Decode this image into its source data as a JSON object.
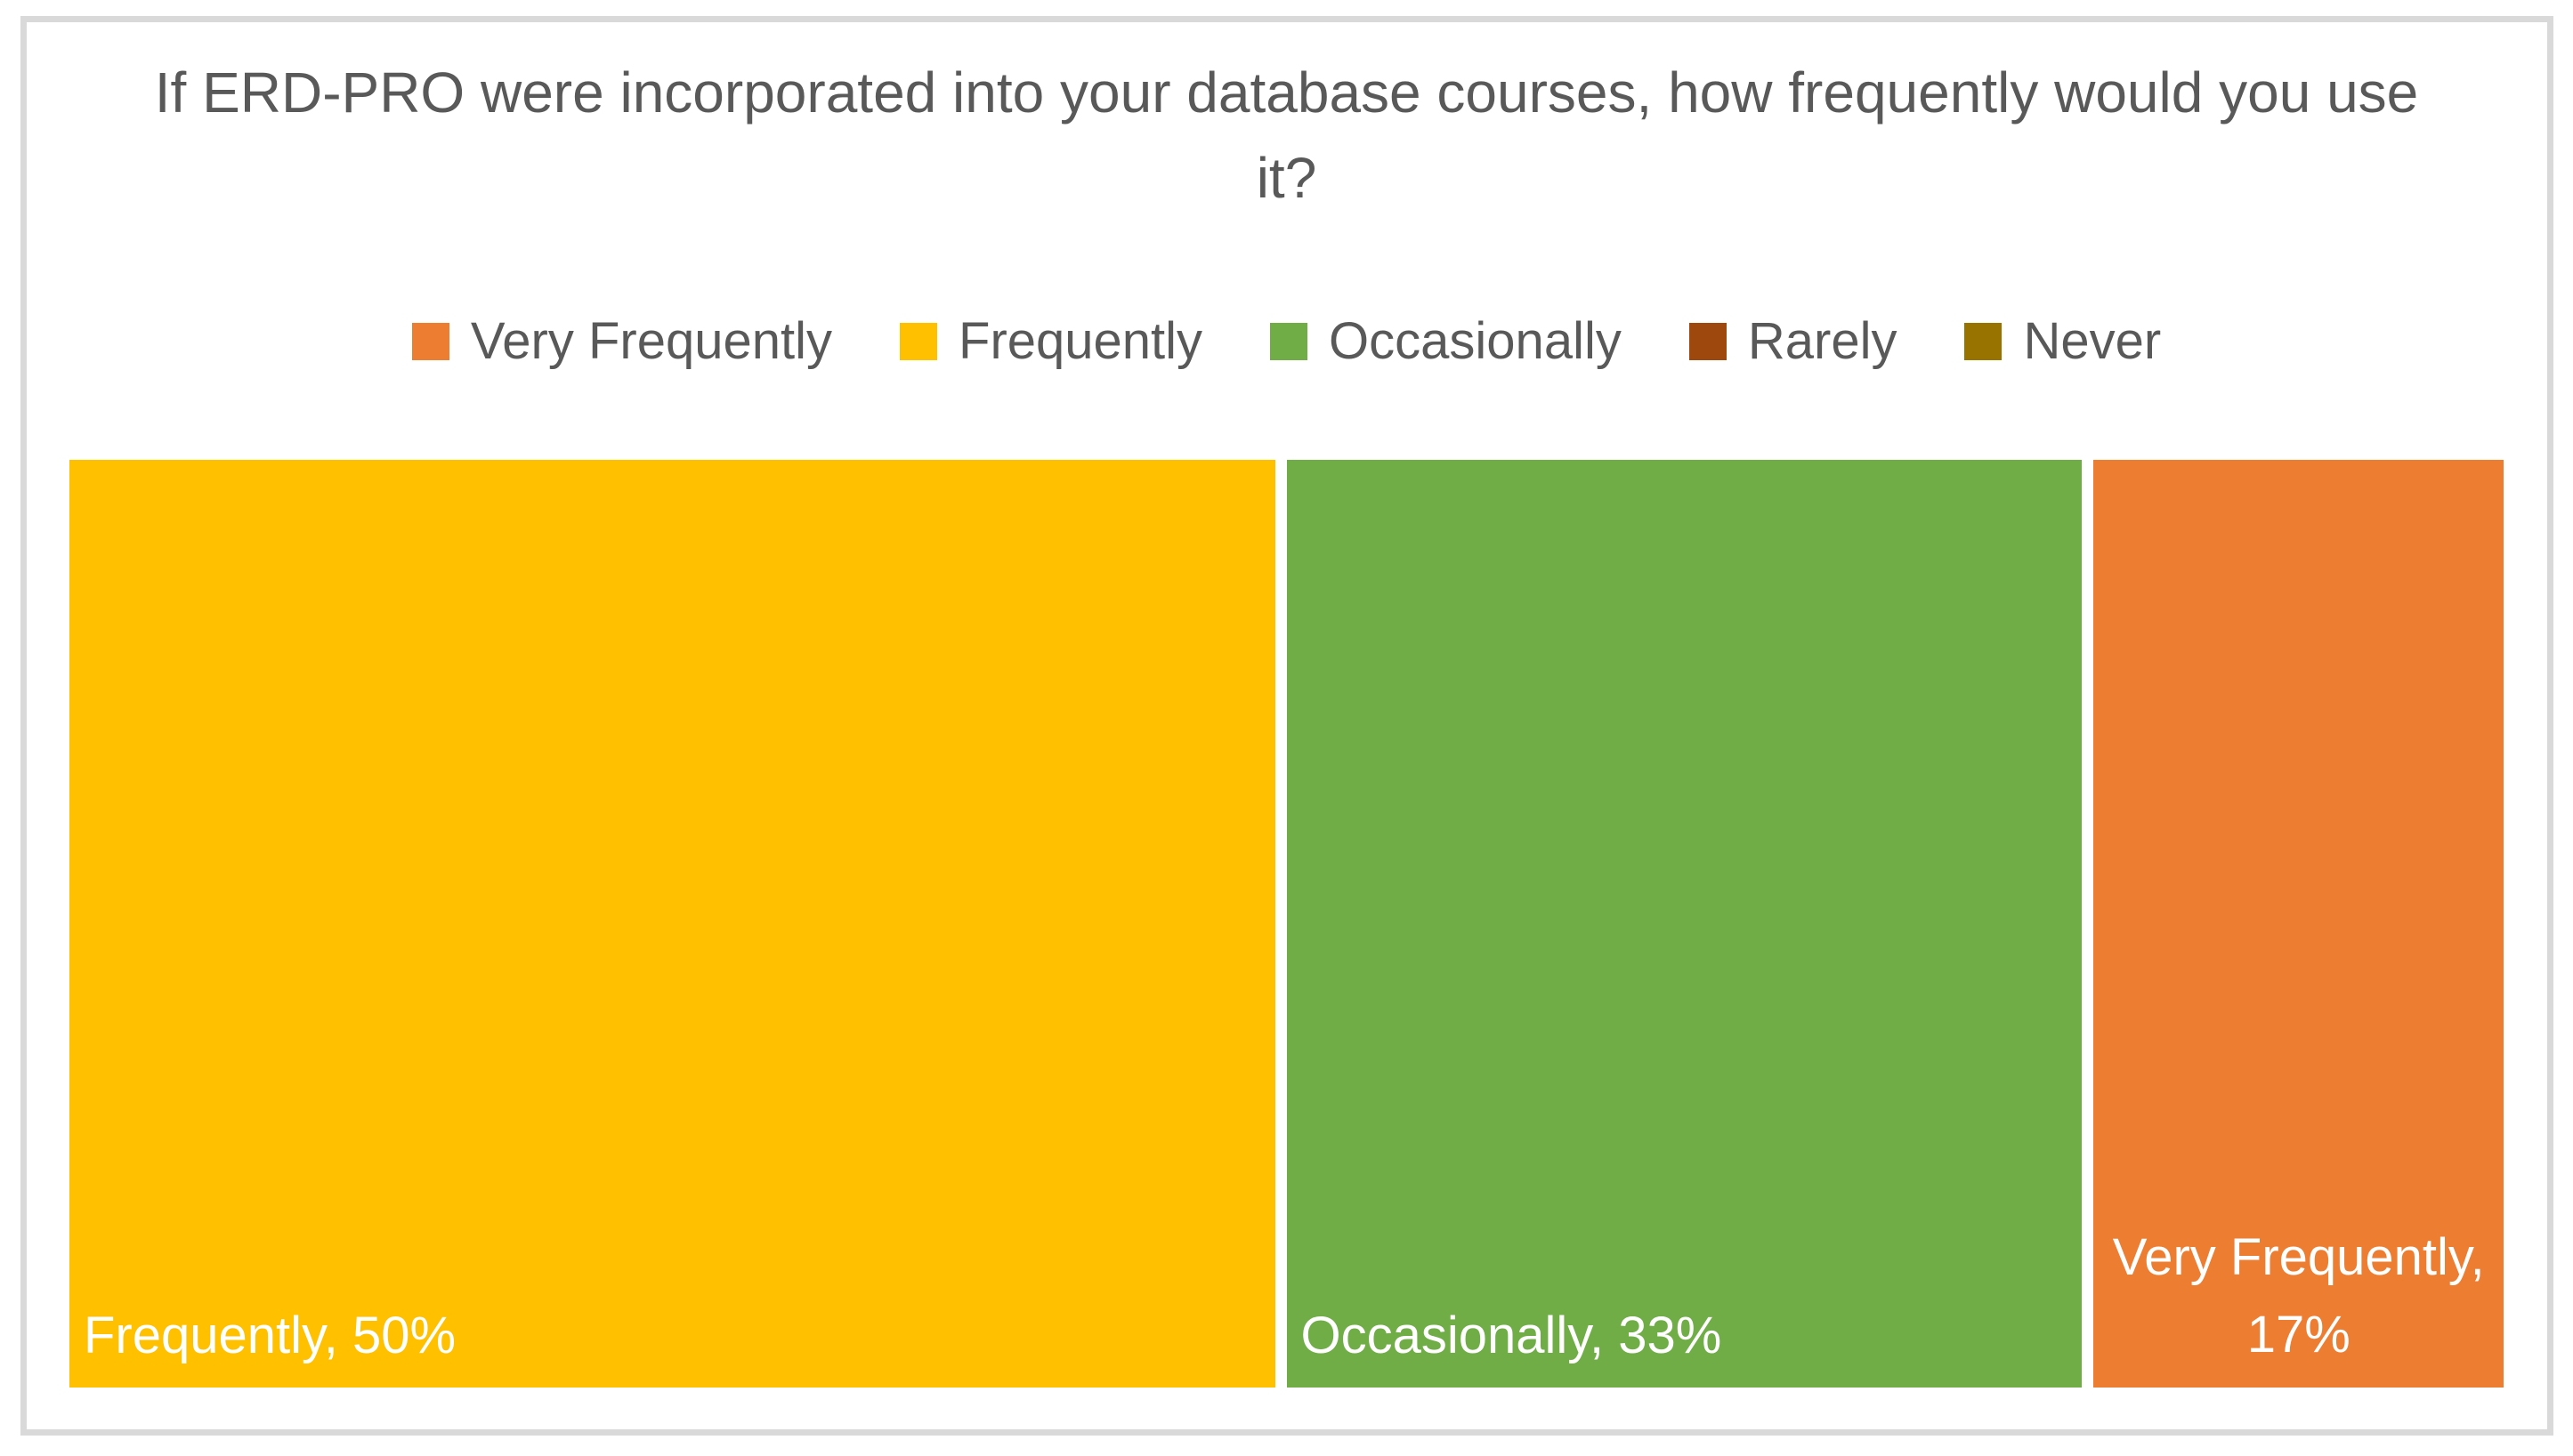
{
  "figure": {
    "border_color": "#D9D9D9",
    "title_color": "#595959",
    "legend_text_color": "#595959",
    "data_label_color": "#FFFFFF"
  },
  "legend": {
    "items": [
      {
        "label": "Very Frequently",
        "color": "#ED7D31"
      },
      {
        "label": "Frequently",
        "color": "#FFC000"
      },
      {
        "label": "Occasionally",
        "color": "#70AD47"
      },
      {
        "label": "Rarely",
        "color": "#9E480E"
      },
      {
        "label": "Never",
        "color": "#997300"
      }
    ]
  },
  "chart_data": {
    "type": "treemap",
    "title": "If ERD-PRO were incorporated into your database courses, how frequently would you use it?",
    "categories": [
      "Very Frequently",
      "Frequently",
      "Occasionally",
      "Rarely",
      "Never"
    ],
    "values": [
      17,
      50,
      33,
      0,
      0
    ],
    "unit": "%",
    "legend_position": "top",
    "grid": false,
    "segments": [
      {
        "category": "Frequently",
        "value": 50,
        "color": "#FFC000",
        "data_label": "Frequently, 50%",
        "label_position": "bottom-left"
      },
      {
        "category": "Occasionally",
        "value": 33,
        "color": "#70AD47",
        "data_label": "Occasionally, 33%",
        "label_position": "bottom-left"
      },
      {
        "category": "Very Frequently",
        "value": 17,
        "color": "#ED7D31",
        "data_label": "Very Frequently, 17%",
        "label_position": "bottom-center"
      }
    ]
  }
}
